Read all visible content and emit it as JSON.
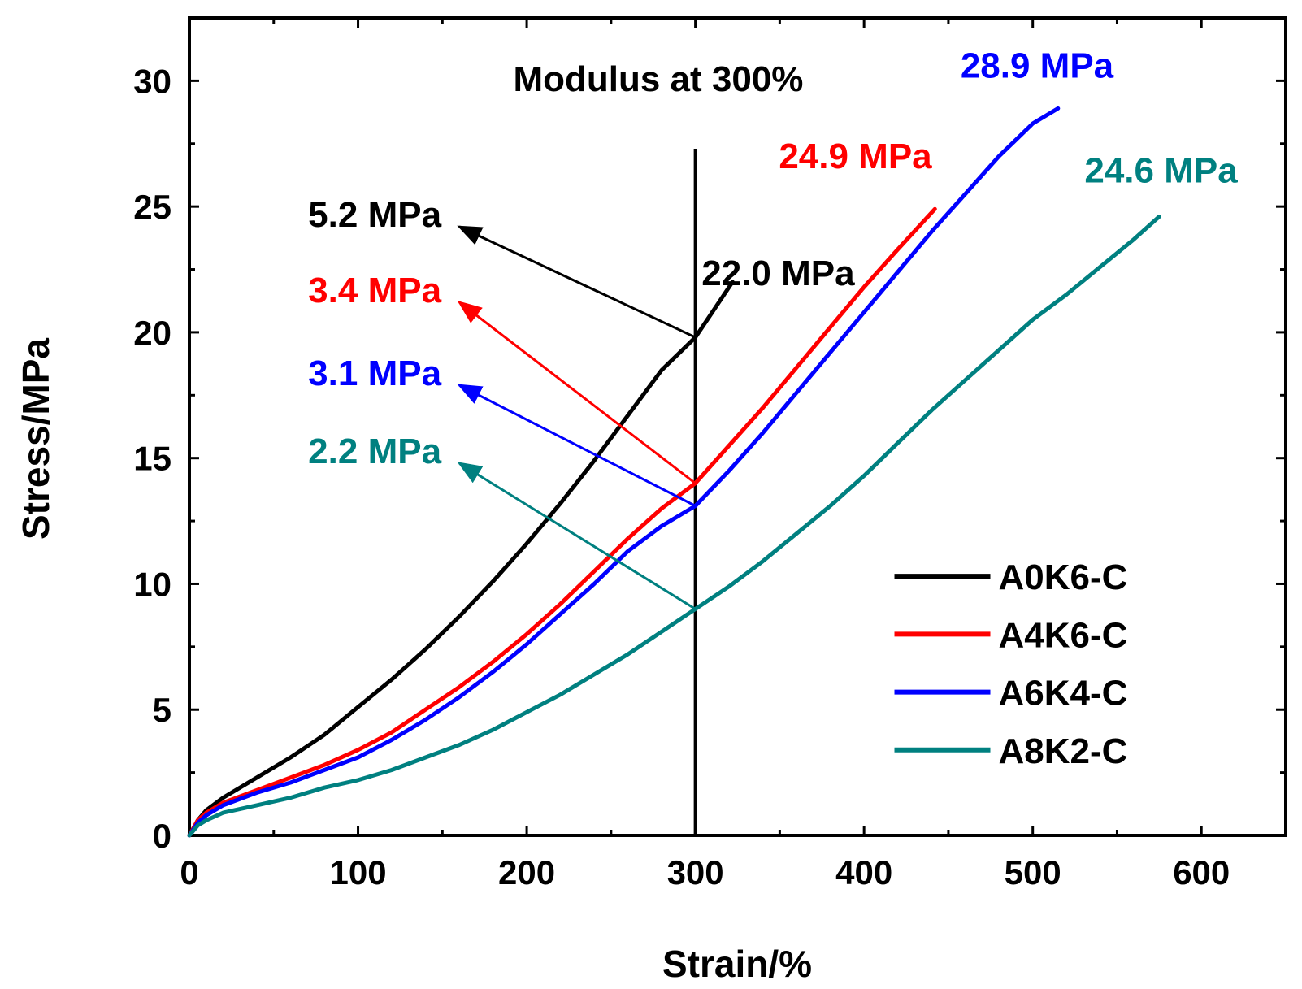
{
  "chart_data": {
    "type": "line",
    "title": "",
    "xlabel": "Strain/%",
    "ylabel": "Stress/MPa",
    "xlim": [
      0,
      650
    ],
    "ylim": [
      0,
      32.5
    ],
    "xticks": [
      0,
      100,
      200,
      300,
      400,
      500,
      600
    ],
    "yticks": [
      0,
      5,
      10,
      15,
      20,
      25,
      30
    ],
    "grid": false,
    "legend_position": "bottom-right",
    "series": [
      {
        "name": "A0K6-C",
        "color": "#000000",
        "x": [
          0,
          5,
          10,
          20,
          40,
          60,
          80,
          100,
          120,
          140,
          160,
          180,
          200,
          220,
          240,
          260,
          280,
          300,
          310,
          322
        ],
        "y": [
          0,
          0.6,
          1.0,
          1.5,
          2.3,
          3.1,
          4.0,
          5.1,
          6.2,
          7.4,
          8.7,
          10.1,
          11.6,
          13.2,
          14.9,
          16.7,
          18.5,
          19.8,
          20.8,
          22.0
        ]
      },
      {
        "name": "A4K6-C",
        "color": "#ff0000",
        "x": [
          0,
          5,
          10,
          20,
          40,
          60,
          80,
          100,
          120,
          140,
          160,
          180,
          200,
          220,
          240,
          260,
          280,
          300,
          320,
          340,
          360,
          380,
          400,
          420,
          442
        ],
        "y": [
          0,
          0.6,
          0.9,
          1.3,
          1.8,
          2.3,
          2.8,
          3.4,
          4.1,
          5.0,
          5.9,
          6.9,
          8.0,
          9.2,
          10.5,
          11.8,
          13.0,
          14.0,
          15.5,
          17.0,
          18.6,
          20.2,
          21.8,
          23.3,
          24.9
        ]
      },
      {
        "name": "A6K4-C",
        "color": "#0000ff",
        "x": [
          0,
          5,
          10,
          20,
          40,
          60,
          80,
          100,
          120,
          140,
          160,
          180,
          200,
          220,
          240,
          260,
          280,
          300,
          320,
          340,
          360,
          380,
          400,
          420,
          440,
          460,
          480,
          500,
          515
        ],
        "y": [
          0,
          0.5,
          0.8,
          1.2,
          1.7,
          2.1,
          2.6,
          3.1,
          3.8,
          4.6,
          5.5,
          6.5,
          7.6,
          8.8,
          10.0,
          11.3,
          12.3,
          13.1,
          14.5,
          16.0,
          17.6,
          19.2,
          20.8,
          22.4,
          24.0,
          25.5,
          27.0,
          28.3,
          28.9
        ]
      },
      {
        "name": "A8K2-C",
        "color": "#008080",
        "x": [
          0,
          5,
          10,
          20,
          40,
          60,
          80,
          100,
          120,
          140,
          160,
          180,
          200,
          220,
          240,
          260,
          280,
          300,
          320,
          340,
          360,
          380,
          400,
          420,
          440,
          460,
          480,
          500,
          520,
          540,
          560,
          575
        ],
        "y": [
          0,
          0.4,
          0.6,
          0.9,
          1.2,
          1.5,
          1.9,
          2.2,
          2.6,
          3.1,
          3.6,
          4.2,
          4.9,
          5.6,
          6.4,
          7.2,
          8.1,
          9.0,
          9.9,
          10.9,
          12.0,
          13.1,
          14.3,
          15.6,
          16.9,
          18.1,
          19.3,
          20.5,
          21.5,
          22.6,
          23.7,
          24.6
        ]
      }
    ],
    "annotations": {
      "title": "Modulus at 300%",
      "vline_x": 300,
      "vline_y_range": [
        0,
        27.3
      ],
      "end_labels": [
        {
          "series": "A0K6-C",
          "text": "22.0 MPa",
          "color": "#000000"
        },
        {
          "series": "A4K6-C",
          "text": "24.9 MPa",
          "color": "#ff0000"
        },
        {
          "series": "A6K4-C",
          "text": "28.9 MPa",
          "color": "#0000ff"
        },
        {
          "series": "A8K2-C",
          "text": "24.6 MPa",
          "color": "#008080"
        }
      ],
      "modulus_labels": [
        {
          "series": "A0K6-C",
          "text": "5.2 MPa",
          "color": "#000000",
          "from": [
            300,
            19.8
          ],
          "to": [
            160,
            24.2
          ]
        },
        {
          "series": "A4K6-C",
          "text": "3.4 MPa",
          "color": "#ff0000",
          "from": [
            300,
            14.0
          ],
          "to": [
            160,
            21.2
          ]
        },
        {
          "series": "A6K4-C",
          "text": "3.1 MPa",
          "color": "#0000ff",
          "from": [
            300,
            13.1
          ],
          "to": [
            160,
            17.9
          ]
        },
        {
          "series": "A8K2-C",
          "text": "2.2 MPa",
          "color": "#008080",
          "from": [
            300,
            9.0
          ],
          "to": [
            160,
            14.8
          ]
        }
      ]
    }
  }
}
